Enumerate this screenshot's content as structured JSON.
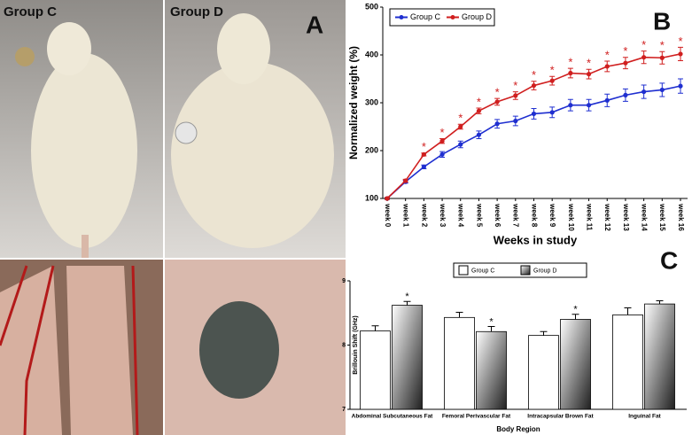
{
  "panels": {
    "photo_labels": [
      "Group C",
      "Group D"
    ],
    "panel_a": "A",
    "panel_b": "B",
    "panel_c": "C"
  },
  "chart_data": [
    {
      "type": "line",
      "x_label": "Weeks in study",
      "y_label": "Normalized weight (%)",
      "categories": [
        "week 0",
        "week 1",
        "week 2",
        "week 3",
        "week 4",
        "week 5",
        "week 6",
        "week 7",
        "week 8",
        "week 9",
        "week 10",
        "week 11",
        "week 12",
        "week 13",
        "week 14",
        "week 15",
        "week 16"
      ],
      "ylim": [
        100,
        500
      ],
      "yticks": [
        100,
        200,
        300,
        400,
        500
      ],
      "legend": "top-left",
      "series": [
        {
          "name": "Group C",
          "color": "#1f2fd0",
          "values": [
            100,
            135,
            166,
            192,
            213,
            233,
            256,
            262,
            277,
            280,
            295,
            295,
            305,
            316,
            323,
            327,
            335
          ],
          "errors": [
            2,
            3,
            4,
            6,
            7,
            8,
            9,
            10,
            11,
            11,
            12,
            12,
            13,
            13,
            14,
            14,
            15
          ],
          "point_labels": [
            null,
            null,
            null,
            null,
            null,
            null,
            null,
            null,
            null,
            null,
            null,
            null,
            null,
            null,
            null,
            null,
            null
          ]
        },
        {
          "name": "Group D",
          "color": "#d01f1f",
          "values": [
            100,
            137,
            192,
            220,
            250,
            283,
            302,
            315,
            336,
            346,
            362,
            360,
            376,
            383,
            395,
            394,
            402
          ],
          "errors": [
            2,
            3,
            3,
            5,
            5,
            6,
            7,
            8,
            9,
            9,
            10,
            10,
            11,
            12,
            13,
            13,
            14
          ],
          "point_labels": [
            null,
            null,
            "*",
            "*",
            "*",
            "*",
            "*",
            "*",
            "*",
            "*",
            "*",
            "*",
            "*",
            "*",
            "*",
            "*",
            "*"
          ]
        }
      ]
    },
    {
      "type": "bar",
      "x_label": "Body Region",
      "y_label": "Brillouin Shift (GHz)",
      "categories": [
        "Abdominal Subcutaneous Fat",
        "Femoral Perivascular Fat",
        "Intracapsular Brown Fat",
        "Inguinal Fat"
      ],
      "ylim": [
        7,
        9
      ],
      "yticks": [
        7,
        8,
        9
      ],
      "legend": "top-center",
      "series": [
        {
          "name": "Group C",
          "color": "#ffffff",
          "values": [
            8.22,
            8.43,
            8.15,
            8.47
          ],
          "errors": [
            0.08,
            0.08,
            0.06,
            0.11
          ],
          "point_labels": [
            null,
            null,
            null,
            null
          ]
        },
        {
          "name": "Group D",
          "color": "#202020",
          "values": [
            8.62,
            8.21,
            8.4,
            8.64
          ],
          "errors": [
            0.06,
            0.08,
            0.08,
            0.05
          ],
          "point_labels": [
            "*",
            "*",
            "*",
            null
          ]
        }
      ]
    }
  ]
}
